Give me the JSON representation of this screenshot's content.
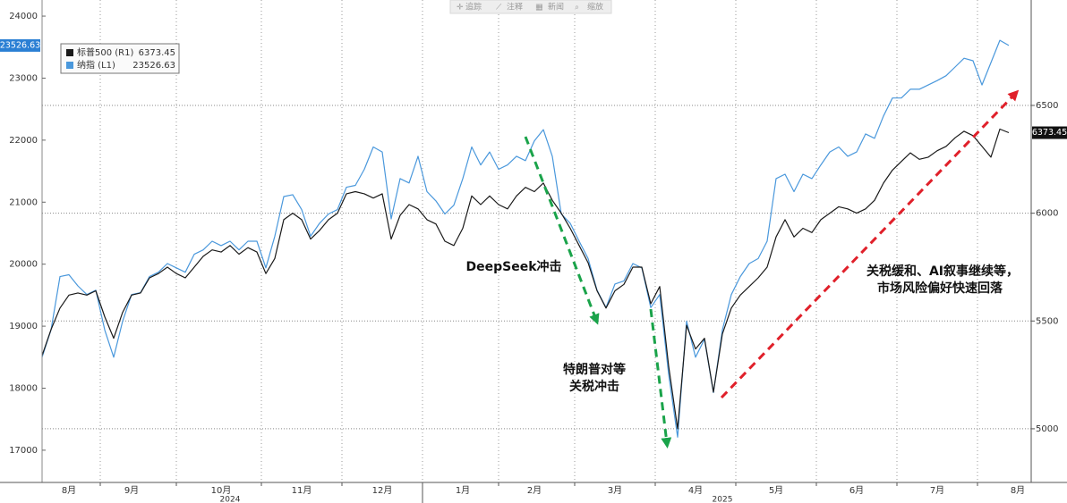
{
  "chart_data": {
    "type": "line",
    "toolbar": [
      "追踪",
      "注释",
      "新闻",
      "缩放"
    ],
    "annotations": [
      "DeepSeek冲击",
      "特朗普对等",
      "关税冲击",
      "关税缓和、AI叙事继续等，",
      "市场风险偏好快速回落"
    ],
    "categories": [
      null,
      null,
      null,
      "8月",
      null,
      null,
      null,
      null,
      null,
      null,
      "9月",
      null,
      null,
      null,
      null,
      null,
      null,
      null,
      null,
      null,
      "10月",
      null,
      null,
      null,
      null,
      null,
      null,
      null,
      null,
      "11月",
      null,
      null,
      null,
      null,
      null,
      null,
      null,
      null,
      "12月",
      null,
      null,
      null,
      null,
      null,
      null,
      null,
      null,
      "1月",
      null,
      null,
      null,
      null,
      null,
      null,
      null,
      "2月",
      null,
      null,
      null,
      null,
      null,
      null,
      null,
      null,
      "3月",
      null,
      null,
      null,
      null,
      null,
      null,
      null,
      null,
      "4月",
      null,
      null,
      null,
      null,
      null,
      null,
      null,
      null,
      "5月",
      null,
      null,
      null,
      null,
      null,
      null,
      null,
      null,
      "6月",
      null,
      null,
      null,
      null,
      null,
      null,
      null,
      null,
      "7月",
      null,
      null,
      null,
      null,
      null,
      null,
      null,
      null,
      "8月"
    ],
    "x_groups": [
      {
        "label": "2024",
        "from": 0,
        "to": 42
      },
      {
        "label": "2025",
        "from": 43,
        "to": 109
      }
    ],
    "series": [
      {
        "name": "标普500 (R1)",
        "color": "#1a1a1a",
        "axis": "y2",
        "values": [
          5340,
          5460,
          5560,
          5620,
          5630,
          5620,
          5640,
          5520,
          5420,
          5540,
          5620,
          5630,
          5700,
          5720,
          5750,
          5720,
          5700,
          5750,
          5800,
          5830,
          5820,
          5850,
          5810,
          5840,
          5820,
          5720,
          5790,
          5970,
          6000,
          5970,
          5880,
          5920,
          5970,
          6000,
          6090,
          6100,
          6090,
          6070,
          6090,
          5880,
          5990,
          6040,
          6020,
          5970,
          5950,
          5870,
          5850,
          5930,
          6080,
          6040,
          6080,
          6040,
          6020,
          6080,
          6120,
          6100,
          6140,
          6060,
          6000,
          5930,
          5850,
          5770,
          5640,
          5560,
          5640,
          5670,
          5750,
          5750,
          5580,
          5660,
          5290,
          5000,
          5480,
          5370,
          5420,
          5170,
          5440,
          5560,
          5620,
          5660,
          5700,
          5750,
          5890,
          5970,
          5890,
          5930,
          5910,
          5970,
          6000,
          6030,
          6020,
          6000,
          6020,
          6060,
          6140,
          6200,
          6240,
          6280,
          6250,
          6260,
          6290,
          6310,
          6350,
          6380,
          6360,
          6310,
          6260,
          6390,
          6373.45,
          null
        ]
      },
      {
        "name": "纳指 (L1)",
        "color": "#4a98dc",
        "axis": "y",
        "values": [
          18500,
          18940,
          19800,
          19830,
          19650,
          19510,
          19580,
          18940,
          18500,
          19080,
          19510,
          19540,
          19800,
          19870,
          20010,
          19940,
          19870,
          20160,
          20230,
          20370,
          20300,
          20370,
          20230,
          20370,
          20370,
          19940,
          20450,
          21090,
          21120,
          20880,
          20450,
          20660,
          20810,
          20880,
          21240,
          21270,
          21530,
          21890,
          21810,
          20730,
          21380,
          21310,
          21740,
          21170,
          21020,
          20810,
          20950,
          21380,
          21890,
          21600,
          21810,
          21530,
          21600,
          21740,
          21670,
          21990,
          22170,
          21740,
          20810,
          20660,
          20370,
          20090,
          19580,
          19300,
          19680,
          19730,
          20010,
          19940,
          19300,
          19510,
          18220,
          17210,
          19080,
          18500,
          18790,
          17930,
          18940,
          19510,
          19800,
          20010,
          20090,
          20370,
          21380,
          21450,
          21170,
          21450,
          21380,
          21600,
          21810,
          21890,
          21740,
          21810,
          22100,
          22030,
          22390,
          22680,
          22680,
          22820,
          22820,
          22890,
          22960,
          23040,
          23180,
          23320,
          23280,
          22890,
          23250,
          23610,
          23526.63,
          null
        ]
      }
    ],
    "ylim": [
      16480,
      24260
    ],
    "yticks": [
      17000,
      18000,
      19000,
      20000,
      21000,
      22000,
      23000,
      24000
    ],
    "y2lim": [
      4751,
      6989
    ],
    "y2ticks": [
      5000,
      5500,
      6000,
      6500
    ],
    "grid": true,
    "legend": "upper left"
  }
}
